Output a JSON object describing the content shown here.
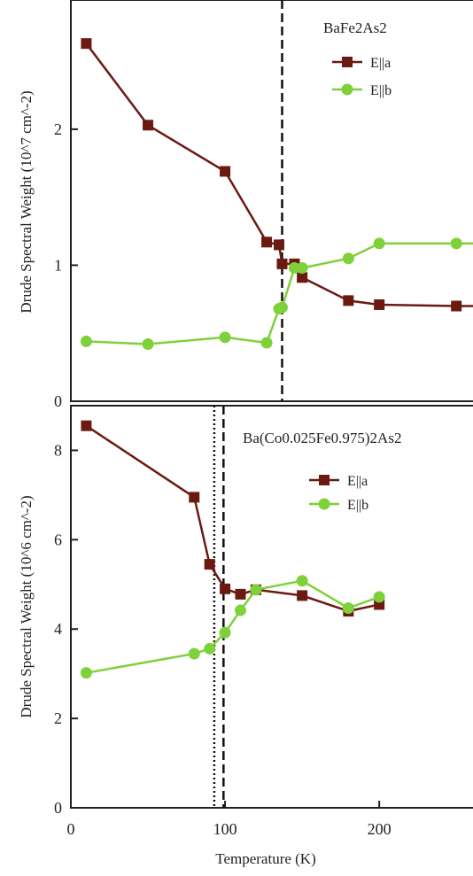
{
  "chart_data": [
    {
      "type": "line",
      "title": "BaFe2As2",
      "xlabel": "",
      "ylabel": "Drude Spectral Weight (10^7 cm^-2)",
      "xlim": [
        0,
        270
      ],
      "ylim": [
        0,
        2.95
      ],
      "yticks": [
        "0",
        "1",
        "2"
      ],
      "grid": false,
      "legend_position": "top-right",
      "vlines": [
        {
          "x": 137,
          "style": "dashed"
        }
      ],
      "series": [
        {
          "name": "E||a",
          "color": "#6b1a12",
          "marker": "square",
          "x": [
            10,
            50,
            100,
            127,
            135,
            137,
            145,
            150,
            180,
            200,
            250,
            270
          ],
          "y": [
            2.63,
            2.03,
            1.69,
            1.17,
            1.15,
            1.01,
            1.01,
            0.91,
            0.74,
            0.71,
            0.7,
            0.7
          ]
        },
        {
          "name": "E||b",
          "color": "#7fd13b",
          "marker": "circle",
          "x": [
            10,
            50,
            100,
            127,
            135,
            137,
            145,
            150,
            180,
            200,
            250,
            270
          ],
          "y": [
            0.44,
            0.42,
            0.47,
            0.43,
            0.68,
            0.69,
            0.98,
            0.98,
            1.05,
            1.16,
            1.16,
            1.16
          ]
        }
      ]
    },
    {
      "type": "line",
      "title": "Ba(Co0.025Fe0.975)2As2",
      "xlabel": "Temperature (K)",
      "ylabel": "Drude Spectral Weight (10^6 cm^-2)",
      "xlim": [
        0,
        270
      ],
      "ylim": [
        0,
        9.0
      ],
      "xticks": [
        "0",
        "100",
        "200"
      ],
      "yticks": [
        "0",
        "2",
        "4",
        "6",
        "8"
      ],
      "grid": false,
      "legend_position": "top-right",
      "vlines": [
        {
          "x": 93,
          "style": "dotted"
        },
        {
          "x": 99,
          "style": "dashed"
        }
      ],
      "series": [
        {
          "name": "E||a",
          "color": "#6b1a12",
          "marker": "square",
          "x": [
            10,
            80,
            90,
            100,
            110,
            120,
            150,
            180,
            200
          ],
          "y": [
            8.55,
            6.95,
            5.45,
            4.9,
            4.78,
            4.88,
            4.75,
            4.4,
            4.55
          ]
        },
        {
          "name": "E||b",
          "color": "#7fd13b",
          "marker": "circle",
          "x": [
            10,
            80,
            90,
            100,
            110,
            120,
            150,
            180,
            200
          ],
          "y": [
            3.02,
            3.45,
            3.56,
            3.92,
            4.42,
            4.88,
            5.08,
            4.47,
            4.72
          ]
        }
      ]
    }
  ]
}
